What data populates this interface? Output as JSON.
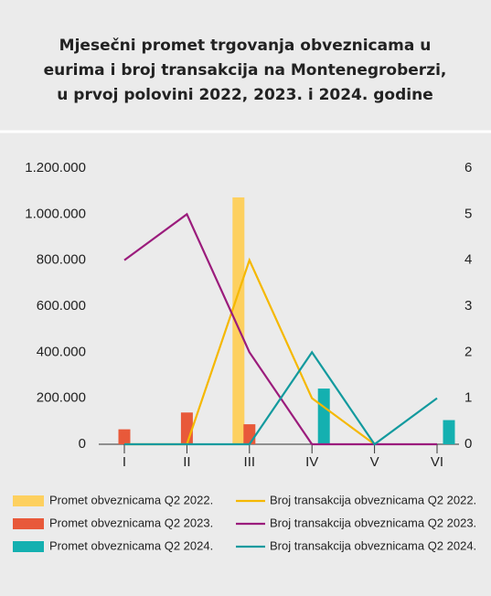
{
  "chart_data": {
    "type": "bar-line",
    "title": [
      "Mjesečni promet trgovanja obveznicama u",
      "eurima i broj transakcija na Montenegroberzi,",
      "u prvoj polovini 2022, 2023. i 2024. godine"
    ],
    "categories": [
      "I",
      "II",
      "III",
      "IV",
      "V",
      "VI"
    ],
    "series": [
      {
        "name": "Promet obveznicama Q2 2022.",
        "color": "#fdd05f",
        "kind": "bar",
        "values": [
          0,
          0,
          1073000,
          0,
          0,
          0
        ]
      },
      {
        "name": "Promet obveznicama Q2 2023.",
        "color": "#e8593a",
        "kind": "bar",
        "values": [
          65000,
          138000,
          87000,
          0,
          0,
          0
        ]
      },
      {
        "name": "Promet obveznicama Q2 2024.",
        "color": "#14b0b0",
        "kind": "bar",
        "values": [
          0,
          0,
          0,
          242000,
          0,
          105000
        ]
      },
      {
        "name": "Broj transakcija obveznicama Q2 2022.",
        "color": "#f5b800",
        "kind": "line",
        "axis": "y2",
        "values": [
          0,
          0,
          4,
          1,
          0,
          null
        ]
      },
      {
        "name": "Broj transakcija obveznicama Q2 2023.",
        "color": "#9b1c7c",
        "kind": "line",
        "axis": "y2",
        "values": [
          4,
          5,
          2,
          0,
          0,
          0
        ]
      },
      {
        "name": "Broj transakcija obveznicama Q2 2024.",
        "color": "#139a9e",
        "kind": "line",
        "axis": "y2",
        "values": [
          0,
          0,
          0,
          2,
          0,
          1
        ]
      }
    ],
    "ylim": [
      0,
      1200000
    ],
    "yticks": [
      0,
      {
        "value": 200000,
        "label": "200.000"
      },
      {
        "value": 400000,
        "label": "400.000"
      },
      {
        "value": 600000,
        "label": "600.000"
      },
      {
        "value": 800000,
        "label": "800.000"
      },
      {
        "value": 1000000,
        "label": "1.000.000"
      },
      {
        "value": 1200000,
        "label": "1.200.000"
      }
    ],
    "y2lim": [
      0,
      6
    ],
    "y2ticks": [
      0,
      1,
      2,
      3,
      4,
      5,
      6
    ]
  }
}
